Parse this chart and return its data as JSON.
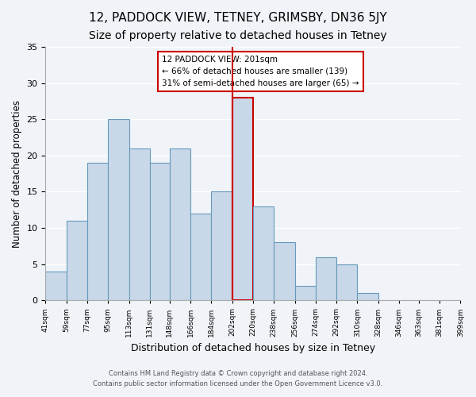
{
  "title": "12, PADDOCK VIEW, TETNEY, GRIMSBY, DN36 5JY",
  "subtitle": "Size of property relative to detached houses in Tetney",
  "xlabel": "Distribution of detached houses by size in Tetney",
  "ylabel": "Number of detached properties",
  "bin_edges": [
    41,
    59,
    77,
    95,
    113,
    131,
    148,
    166,
    184,
    202,
    220,
    238,
    256,
    274,
    292,
    310,
    328,
    346,
    363,
    381,
    399
  ],
  "bin_labels": [
    "41sqm",
    "59sqm",
    "77sqm",
    "95sqm",
    "113sqm",
    "131sqm",
    "148sqm",
    "166sqm",
    "184sqm",
    "202sqm",
    "220sqm",
    "238sqm",
    "256sqm",
    "274sqm",
    "292sqm",
    "310sqm",
    "328sqm",
    "346sqm",
    "363sqm",
    "381sqm",
    "399sqm"
  ],
  "counts": [
    4,
    11,
    19,
    25,
    21,
    19,
    21,
    12,
    15,
    28,
    13,
    8,
    2,
    6,
    5,
    1,
    0,
    0,
    0,
    0
  ],
  "bar_color": "#c8d8e8",
  "bar_edge_color": "#6699bb",
  "highlight_bar_index": 9,
  "highlight_bar_color": "#c8d8e8",
  "highlight_bar_edge_color": "#cc0000",
  "vline_x": 202,
  "vline_color": "#cc0000",
  "ylim": [
    0,
    35
  ],
  "yticks": [
    0,
    5,
    10,
    15,
    20,
    25,
    30,
    35
  ],
  "annotation_title": "12 PADDOCK VIEW: 201sqm",
  "annotation_line1": "← 66% of detached houses are smaller (139)",
  "annotation_line2": "31% of semi-detached houses are larger (65) →",
  "annotation_box_edge": "#cc0000",
  "footer_line1": "Contains HM Land Registry data © Crown copyright and database right 2024.",
  "footer_line2": "Contains public sector information licensed under the Open Government Licence v3.0.",
  "background_color": "#f0f4f8",
  "grid_color": "#ffffff",
  "title_fontsize": 11,
  "subtitle_fontsize": 10
}
